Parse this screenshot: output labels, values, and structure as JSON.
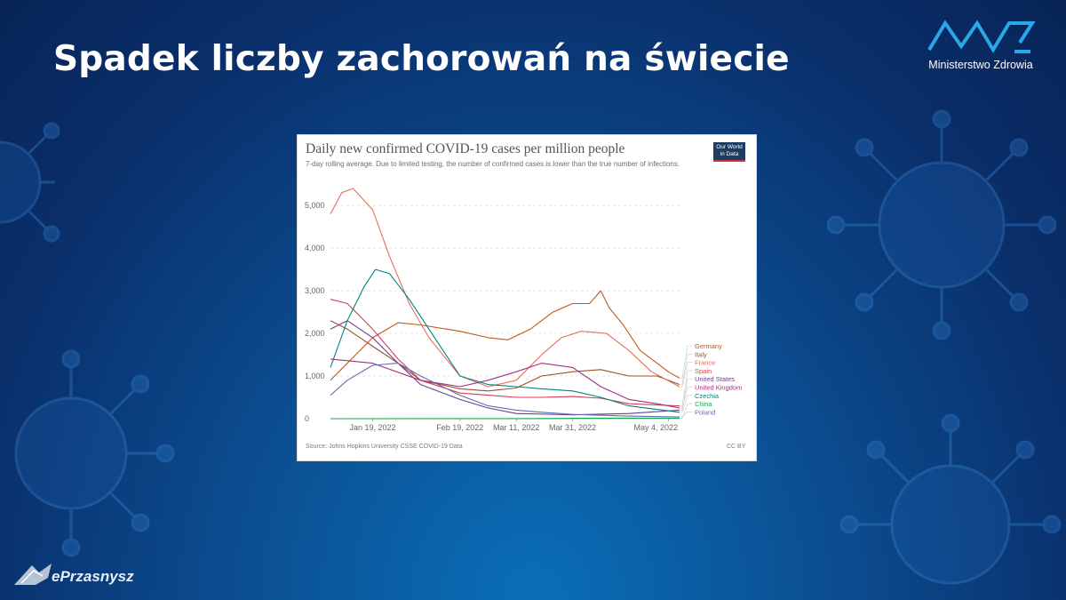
{
  "slide": {
    "title": "Spadek liczby zachorowań na świecie",
    "logo_text": "Ministerstwo Zdrowia",
    "watermark": "ePrzasnysz",
    "colors": {
      "background": "#0b4f92",
      "title": "#ffffff"
    },
    "icons": [
      "virus-illustration",
      "ministry-logo",
      "eprzasnysz-logo"
    ]
  },
  "chart": {
    "badge": "Our World in Data",
    "source": "Source: Johns Hopkins University CSSE COVID-19 Data",
    "license": "CC BY"
  },
  "chart_data": {
    "type": "line",
    "title": "Daily new confirmed COVID-19 cases per million people",
    "subtitle": "7-day rolling average. Due to limited testing, the number of confirmed cases is lower than the true number of infections.",
    "x_ticks": [
      "Jan 19, 2022",
      "Feb 19, 2022",
      "Mar 11, 2022",
      "Mar 31, 2022",
      "May 4, 2022"
    ],
    "x_range": [
      "2022-01-04",
      "2022-05-08"
    ],
    "ylim": [
      0,
      5400
    ],
    "y_ticks": [
      0,
      1000,
      2000,
      3000,
      4000,
      5000
    ],
    "y_tick_labels": [
      "0",
      "1,000",
      "2,000",
      "3,000",
      "4,000",
      "5,000"
    ],
    "grid": true,
    "legend_placement": "right",
    "series": [
      {
        "name": "Germany",
        "color": "#c05917",
        "points": [
          [
            "2022-01-04",
            900
          ],
          [
            "2022-01-10",
            1300
          ],
          [
            "2022-01-19",
            1900
          ],
          [
            "2022-01-28",
            2250
          ],
          [
            "2022-02-05",
            2200
          ],
          [
            "2022-02-19",
            2050
          ],
          [
            "2022-03-01",
            1900
          ],
          [
            "2022-03-08",
            1850
          ],
          [
            "2022-03-16",
            2100
          ],
          [
            "2022-03-24",
            2500
          ],
          [
            "2022-03-31",
            2700
          ],
          [
            "2022-04-06",
            2700
          ],
          [
            "2022-04-10",
            3000
          ],
          [
            "2022-04-13",
            2600
          ],
          [
            "2022-04-18",
            2200
          ],
          [
            "2022-04-24",
            1600
          ],
          [
            "2022-04-30",
            1300
          ],
          [
            "2022-05-04",
            1100
          ],
          [
            "2022-05-08",
            950
          ]
        ]
      },
      {
        "name": "Italy",
        "color": "#9a5129",
        "points": [
          [
            "2022-01-04",
            2300
          ],
          [
            "2022-01-10",
            2100
          ],
          [
            "2022-01-19",
            1700
          ],
          [
            "2022-01-28",
            1300
          ],
          [
            "2022-02-05",
            900
          ],
          [
            "2022-02-19",
            700
          ],
          [
            "2022-03-01",
            650
          ],
          [
            "2022-03-11",
            720
          ],
          [
            "2022-03-20",
            1000
          ],
          [
            "2022-03-31",
            1100
          ],
          [
            "2022-04-10",
            1150
          ],
          [
            "2022-04-20",
            1000
          ],
          [
            "2022-04-30",
            1000
          ],
          [
            "2022-05-08",
            800
          ]
        ]
      },
      {
        "name": "France",
        "color": "#e56e5a",
        "points": [
          [
            "2022-01-04",
            4800
          ],
          [
            "2022-01-08",
            5300
          ],
          [
            "2022-01-12",
            5400
          ],
          [
            "2022-01-19",
            4900
          ],
          [
            "2022-01-25",
            3800
          ],
          [
            "2022-02-01",
            2700
          ],
          [
            "2022-02-08",
            1900
          ],
          [
            "2022-02-19",
            1000
          ],
          [
            "2022-03-01",
            750
          ],
          [
            "2022-03-11",
            900
          ],
          [
            "2022-03-20",
            1500
          ],
          [
            "2022-03-27",
            1900
          ],
          [
            "2022-04-03",
            2050
          ],
          [
            "2022-04-12",
            2000
          ],
          [
            "2022-04-20",
            1600
          ],
          [
            "2022-04-28",
            1100
          ],
          [
            "2022-05-08",
            750
          ]
        ]
      },
      {
        "name": "Spain",
        "color": "#d73c50",
        "points": [
          [
            "2022-01-04",
            2800
          ],
          [
            "2022-01-10",
            2700
          ],
          [
            "2022-01-19",
            2100
          ],
          [
            "2022-01-28",
            1400
          ],
          [
            "2022-02-05",
            900
          ],
          [
            "2022-02-19",
            600
          ],
          [
            "2022-03-01",
            550
          ],
          [
            "2022-03-11",
            500
          ],
          [
            "2022-03-20",
            500
          ],
          [
            "2022-03-31",
            520
          ],
          [
            "2022-04-10",
            480
          ],
          [
            "2022-04-20",
            350
          ],
          [
            "2022-05-08",
            300
          ]
        ]
      },
      {
        "name": "United States",
        "color": "#6d3e91",
        "points": [
          [
            "2022-01-04",
            2100
          ],
          [
            "2022-01-10",
            2300
          ],
          [
            "2022-01-19",
            1900
          ],
          [
            "2022-01-28",
            1300
          ],
          [
            "2022-02-05",
            800
          ],
          [
            "2022-02-19",
            450
          ],
          [
            "2022-03-01",
            250
          ],
          [
            "2022-03-11",
            120
          ],
          [
            "2022-03-31",
            90
          ],
          [
            "2022-04-20",
            120
          ],
          [
            "2022-05-08",
            200
          ]
        ]
      },
      {
        "name": "United Kingdom",
        "color": "#a2307c",
        "points": [
          [
            "2022-01-04",
            1400
          ],
          [
            "2022-01-19",
            1300
          ],
          [
            "2022-02-05",
            900
          ],
          [
            "2022-02-19",
            750
          ],
          [
            "2022-03-01",
            900
          ],
          [
            "2022-03-11",
            1100
          ],
          [
            "2022-03-20",
            1300
          ],
          [
            "2022-03-31",
            1200
          ],
          [
            "2022-04-10",
            750
          ],
          [
            "2022-04-20",
            450
          ],
          [
            "2022-04-30",
            350
          ],
          [
            "2022-05-08",
            250
          ]
        ]
      },
      {
        "name": "Czechia",
        "color": "#00847e",
        "points": [
          [
            "2022-01-04",
            1200
          ],
          [
            "2022-01-10",
            2300
          ],
          [
            "2022-01-16",
            3100
          ],
          [
            "2022-01-20",
            3500
          ],
          [
            "2022-01-25",
            3400
          ],
          [
            "2022-02-01",
            2800
          ],
          [
            "2022-02-08",
            2100
          ],
          [
            "2022-02-14",
            1500
          ],
          [
            "2022-02-19",
            1000
          ],
          [
            "2022-03-01",
            800
          ],
          [
            "2022-03-11",
            750
          ],
          [
            "2022-03-20",
            700
          ],
          [
            "2022-03-31",
            650
          ],
          [
            "2022-04-10",
            500
          ],
          [
            "2022-04-20",
            300
          ],
          [
            "2022-05-08",
            150
          ]
        ]
      },
      {
        "name": "China",
        "color": "#18a64d",
        "points": [
          [
            "2022-01-04",
            1
          ],
          [
            "2022-03-11",
            2
          ],
          [
            "2022-04-20",
            15
          ],
          [
            "2022-05-08",
            10
          ]
        ]
      },
      {
        "name": "Poland",
        "color": "#5e6eb4",
        "points": [
          [
            "2022-01-04",
            550
          ],
          [
            "2022-01-10",
            900
          ],
          [
            "2022-01-19",
            1250
          ],
          [
            "2022-01-28",
            1300
          ],
          [
            "2022-02-05",
            1000
          ],
          [
            "2022-02-19",
            550
          ],
          [
            "2022-03-01",
            300
          ],
          [
            "2022-03-11",
            200
          ],
          [
            "2022-03-20",
            150
          ],
          [
            "2022-03-31",
            100
          ],
          [
            "2022-04-20",
            60
          ],
          [
            "2022-05-08",
            40
          ]
        ]
      }
    ]
  }
}
